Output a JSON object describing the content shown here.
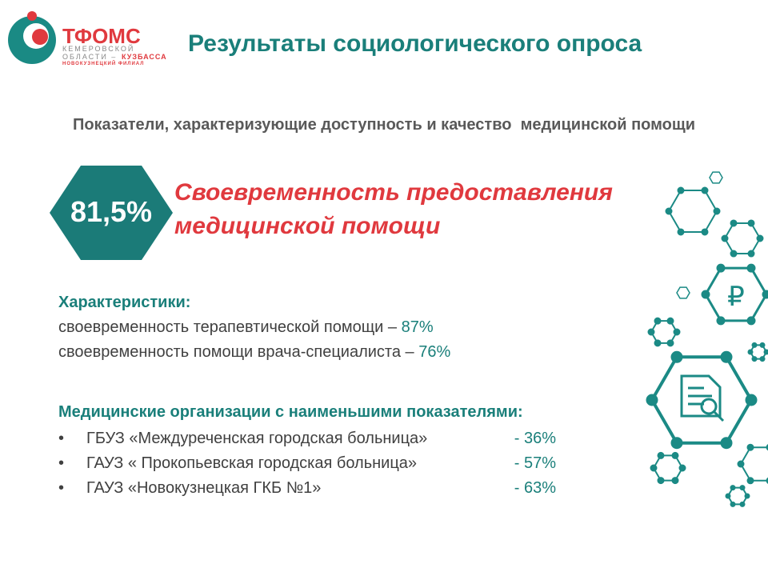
{
  "logo": {
    "name": "ТФОМС",
    "line1": "КЕМЕРОВСКОЙ",
    "line2": "ОБЛАСТИ –",
    "line2_accent": "КУЗБАССА",
    "line3": "НОВОКУЗНЕЦКИЙ ФИЛИАЛ"
  },
  "title": "Результаты социологического опроса",
  "subtitle": "Показатели, характеризующие доступность и качество  медицинской помощи",
  "highlight": {
    "value": "81,5%",
    "lines": [
      "Своевременность предоставления",
      "медицинской помощи"
    ]
  },
  "characteristics": {
    "heading": "Характеристики:",
    "items": [
      {
        "text": "своевременность терапевтической помощи – ",
        "value": "87%"
      },
      {
        "text": "своевременность помощи врача-специалиста – ",
        "value": "76%"
      }
    ]
  },
  "organizations": {
    "heading": "Медицинские организации с наименьшими показателями:",
    "items": [
      {
        "name": "ГБУЗ «Междуреченская городская больница»",
        "value": "- 36%"
      },
      {
        "name": "ГАУЗ « Прокопьевская городская больница»",
        "value": "- 57%"
      },
      {
        "name": "ГАУЗ «Новокузнецкая ГКБ №1»",
        "value": "- 63%"
      }
    ]
  }
}
